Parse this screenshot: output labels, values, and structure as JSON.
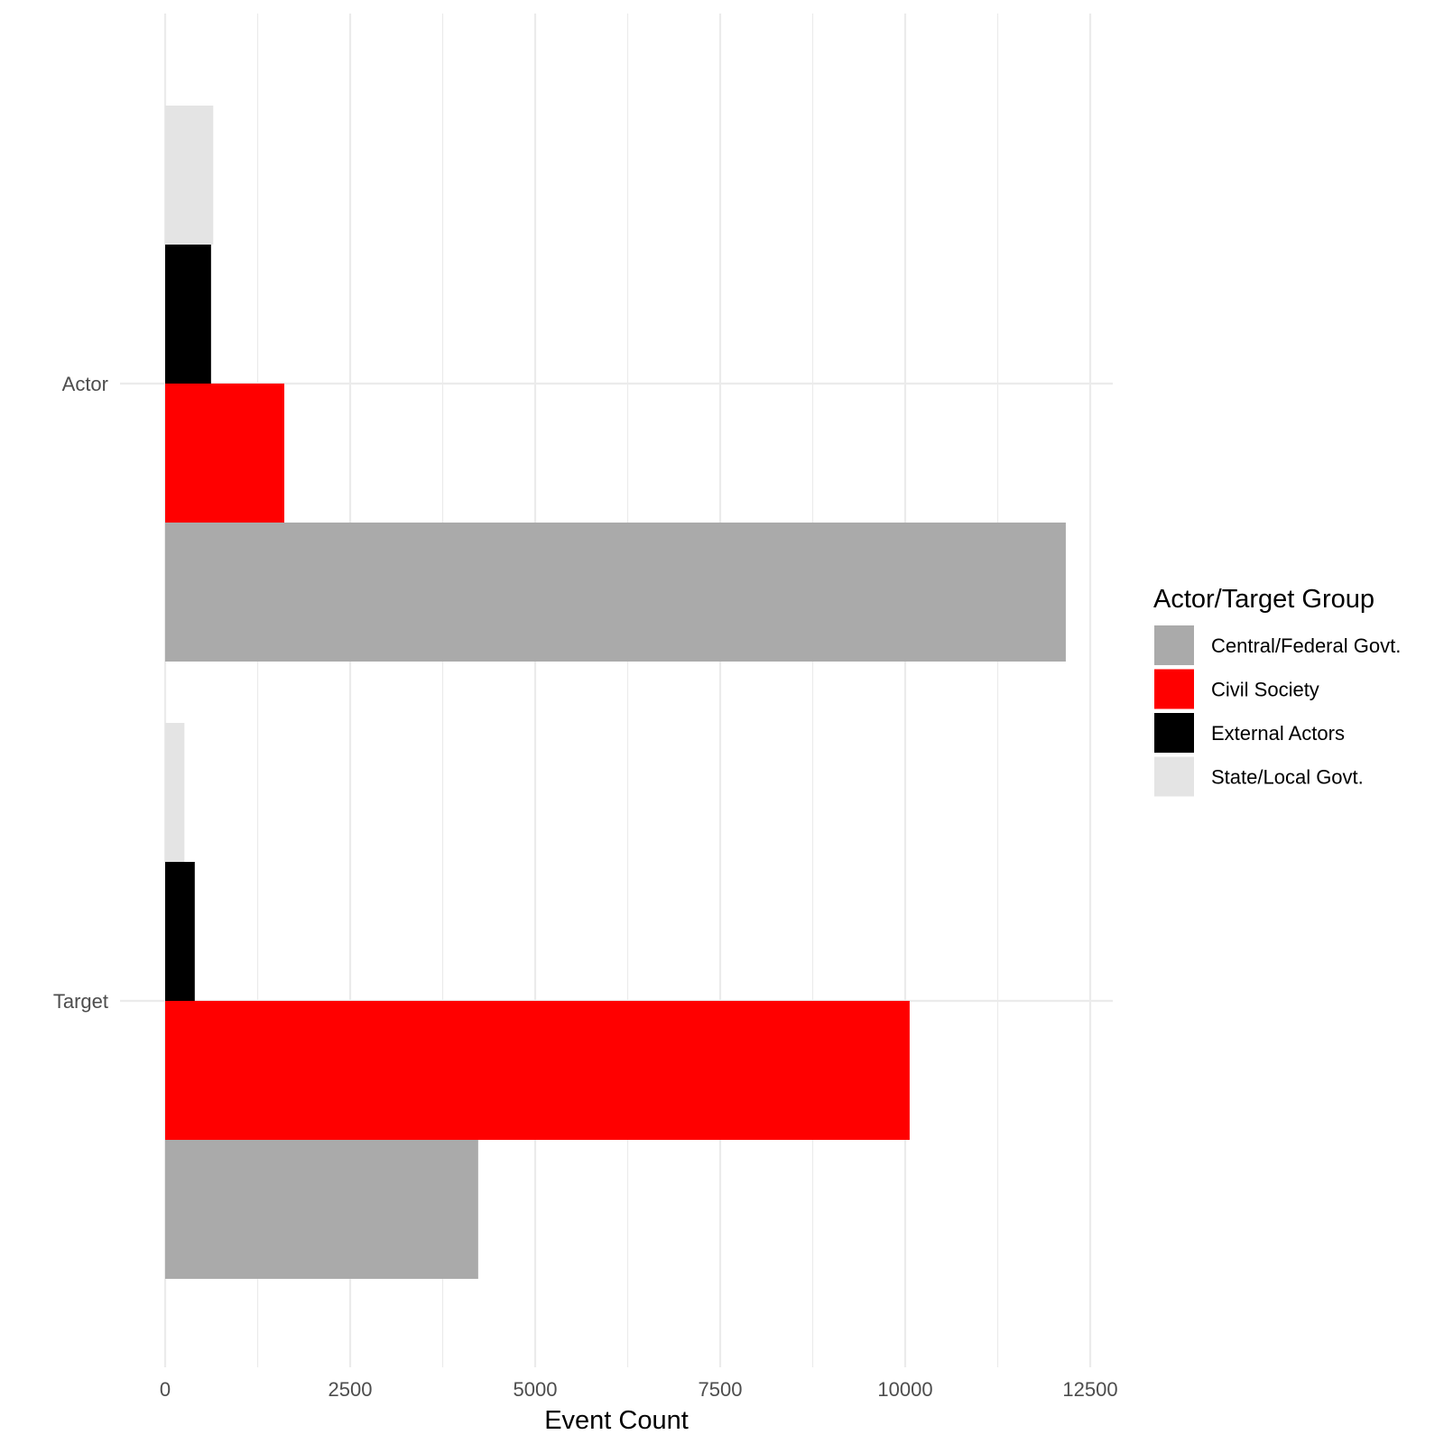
{
  "chart_data": {
    "type": "bar",
    "orientation": "horizontal",
    "categories": [
      "Actor",
      "Target"
    ],
    "series": [
      {
        "name": "Central/Federal Govt.",
        "color": "#aaaaaa",
        "values": [
          12170,
          4230
        ]
      },
      {
        "name": "Civil Society",
        "color": "#ff0000",
        "values": [
          1610,
          10060
        ]
      },
      {
        "name": "External Actors",
        "color": "#000000",
        "values": [
          620,
          400
        ]
      },
      {
        "name": "State/Local Govt.",
        "color": "#e4e4e4",
        "values": [
          650,
          260
        ]
      }
    ],
    "xlabel": "Event Count",
    "ylabel": "",
    "xlim": [
      0,
      12800
    ],
    "xticks": [
      0,
      2500,
      5000,
      7500,
      10000,
      12500
    ],
    "xtick_labels": [
      "0",
      "2500",
      "5000",
      "7500",
      "10000",
      "12500"
    ],
    "grid": true,
    "legend": {
      "title": "Actor/Target Group",
      "placement": "right"
    }
  }
}
